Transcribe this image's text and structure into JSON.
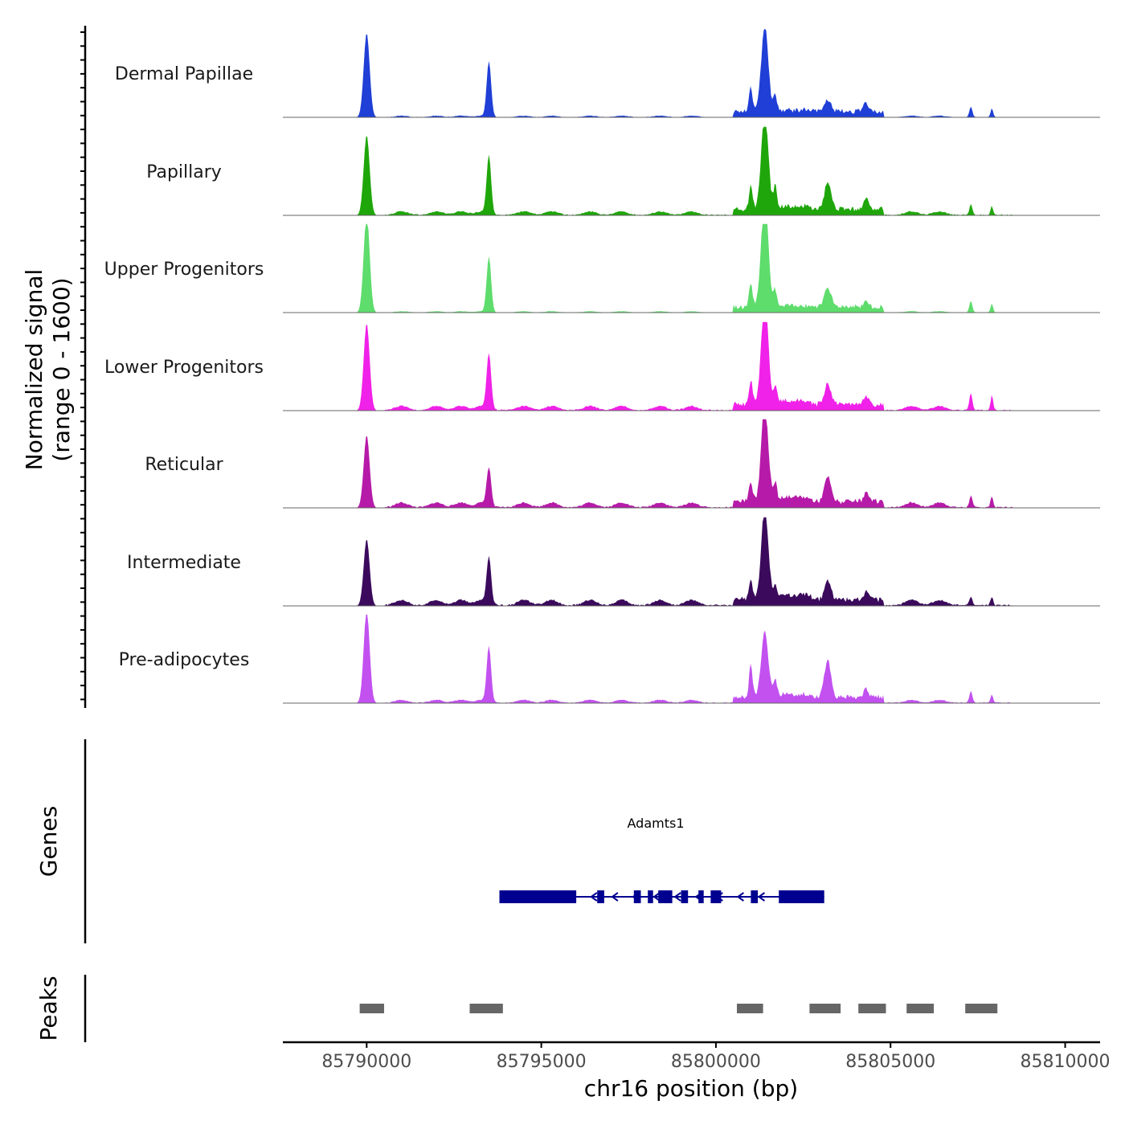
{
  "chart_data": {
    "type": "area",
    "title": "",
    "xlabel": "chr16 position (bp)",
    "ylabel_line1": "Normalized signal",
    "ylabel_line2": "(range 0 - 1600)",
    "ylim": [
      0,
      1600
    ],
    "xlim": [
      85787600,
      85811000
    ],
    "x_ticks": [
      85790000,
      85795000,
      85800000,
      85805000,
      85810000
    ],
    "x_tick_labels": [
      "85790000",
      "85795000",
      "85800000",
      "85805000",
      "85810000"
    ],
    "track_labels": {
      "genes": "Genes",
      "peaks": "Peaks"
    },
    "peak_shape_positions": [
      85790000,
      85793500,
      85801000,
      85801400,
      85801700,
      85803200,
      85804300,
      85807300,
      85807900
    ],
    "series": [
      {
        "name": "Dermal Papillae",
        "color": "#1f3fd6",
        "peak_heights": [
          1450,
          950,
          420,
          1500,
          280,
          200,
          160,
          180,
          150
        ],
        "baseline": 25
      },
      {
        "name": "Papillary",
        "color": "#1fa60a",
        "peak_heights": [
          1380,
          1000,
          420,
          1700,
          380,
          450,
          200,
          180,
          150
        ],
        "baseline": 60
      },
      {
        "name": "Upper Progenitors",
        "color": "#5edc6c",
        "peak_heights": [
          1700,
          950,
          400,
          2000,
          280,
          350,
          100,
          200,
          150
        ],
        "baseline": 20
      },
      {
        "name": "Lower Progenitors",
        "color": "#f021e8",
        "peak_heights": [
          1500,
          950,
          420,
          1900,
          320,
          350,
          150,
          300,
          250
        ],
        "baseline": 70
      },
      {
        "name": "Reticular",
        "color": "#b61aa8",
        "peak_heights": [
          1250,
          650,
          350,
          1700,
          300,
          420,
          160,
          200,
          200
        ],
        "baseline": 80
      },
      {
        "name": "Intermediate",
        "color": "#3b0a5c",
        "peak_heights": [
          1150,
          800,
          380,
          1600,
          250,
          320,
          150,
          150,
          150
        ],
        "baseline": 90
      },
      {
        "name": "Pre-adipocytes",
        "color": "#c251f0",
        "peak_heights": [
          1600,
          950,
          550,
          1150,
          300,
          650,
          150,
          200,
          150
        ],
        "baseline": 50
      }
    ],
    "gene": {
      "name": "Adamts1",
      "start": 85793800,
      "end": 85803100,
      "strand": "-",
      "color": "#000090",
      "exons": [
        [
          85793800,
          85795400
        ],
        [
          85795400,
          85796000
        ],
        [
          85796600,
          85796800
        ],
        [
          85797650,
          85797850
        ],
        [
          85798050,
          85798200
        ],
        [
          85798350,
          85798750
        ],
        [
          85799000,
          85799200
        ],
        [
          85799500,
          85799650
        ],
        [
          85799850,
          85800150
        ],
        [
          85801000,
          85801200
        ],
        [
          85801800,
          85803100
        ]
      ]
    },
    "peaks": [
      [
        85789800,
        85790500
      ],
      [
        85792950,
        85793900
      ],
      [
        85800600,
        85801350
      ],
      [
        85802680,
        85803570
      ],
      [
        85804080,
        85804870
      ],
      [
        85805460,
        85806240
      ],
      [
        85807140,
        85808060
      ]
    ]
  }
}
